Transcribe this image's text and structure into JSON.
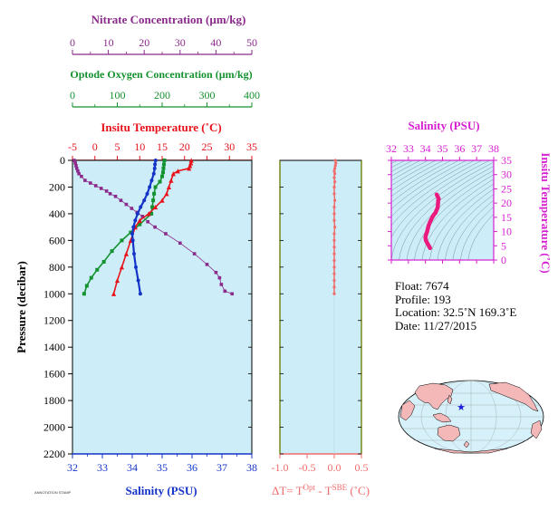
{
  "colors": {
    "plot_bg": "#cdeef8",
    "nitrate": "#8b2a8b",
    "oxygen": "#13922f",
    "temperature": "#e8121b",
    "salinity": "#1434c8",
    "delta_t": "#f26b6b",
    "ts_axis": "#d61fd0",
    "ts_curve": "#ea1a7e",
    "map_land": "#f4b8b8",
    "map_ocean": "#d6f1fa",
    "float_marker": "#1b1bd6"
  },
  "axes": {
    "nitrate_title": "Nitrate Concentration (µm/kg)",
    "oxygen_title": "Optode Oxygen Concentration (µm/kg)",
    "temperature_title": "Insitu Temperature (˚C)",
    "salinity_title": "Salinity (PSU)",
    "pressure_title": "Pressure (decibar)",
    "delta_t_title_prefix": "ΔT= T",
    "delta_t_sup1": "Opt",
    "delta_t_mid": " - T",
    "delta_t_sup2": "SBE",
    "delta_t_suffix": " (˚C)",
    "ts_salinity_title": "Salinity (PSU)",
    "ts_temperature_title": "Insitu Temperature (˚C)"
  },
  "info": {
    "float": "Float:  7674",
    "profile": "Profile:  193",
    "location": "Location:  32.5˚N  169.3˚E",
    "date": "Date:  11/27/2015"
  },
  "stamp": "ANNOTATION STAMP",
  "chart_data": [
    {
      "type": "line",
      "title": "",
      "ylabel": "Pressure (decibar)",
      "ylim": [
        0,
        2200
      ],
      "y_reversed": true,
      "y_ticks": [
        0,
        200,
        400,
        600,
        800,
        1000,
        1200,
        1400,
        1600,
        1800,
        2000,
        2200
      ],
      "axes_x": {
        "nitrate": {
          "label": "Nitrate Concentration (µm/kg)",
          "range": [
            0,
            50
          ],
          "ticks": [
            0,
            10,
            20,
            30,
            40,
            50
          ]
        },
        "oxygen": {
          "label": "Optode Oxygen Concentration (µm/kg)",
          "range": [
            0,
            400
          ],
          "ticks": [
            0,
            100,
            200,
            300,
            400
          ]
        },
        "temperature": {
          "label": "Insitu Temperature (˚C)",
          "range": [
            -5,
            35
          ],
          "ticks": [
            -5,
            0,
            5,
            10,
            15,
            20,
            25,
            30,
            35
          ]
        },
        "salinity": {
          "label": "Salinity (PSU)",
          "range": [
            32,
            38
          ],
          "ticks": [
            32,
            33,
            34,
            35,
            36,
            37,
            38
          ]
        }
      },
      "series": [
        {
          "name": "Nitrate",
          "axis": "nitrate",
          "points": [
            [
              0.5,
              0
            ],
            [
              0.8,
              20
            ],
            [
              1.0,
              40
            ],
            [
              1.2,
              60
            ],
            [
              1.5,
              80
            ],
            [
              1.8,
              100
            ],
            [
              2.5,
              120
            ],
            [
              3.5,
              150
            ],
            [
              5.0,
              170
            ],
            [
              6.5,
              190
            ],
            [
              8.0,
              210
            ],
            [
              9.5,
              230
            ],
            [
              10.5,
              250
            ],
            [
              12.0,
              270
            ],
            [
              13.5,
              300
            ],
            [
              15.0,
              330
            ],
            [
              16.5,
              360
            ],
            [
              18.0,
              390
            ],
            [
              19.5,
              420
            ],
            [
              21.0,
              460
            ],
            [
              23.0,
              500
            ],
            [
              26.0,
              550
            ],
            [
              30.0,
              620
            ],
            [
              34.0,
              700
            ],
            [
              37.5,
              780
            ],
            [
              40.0,
              840
            ],
            [
              41.0,
              880
            ],
            [
              41.5,
              930
            ],
            [
              42.5,
              980
            ],
            [
              44.5,
              1000
            ]
          ]
        },
        {
          "name": "Oxygen",
          "axis": "oxygen",
          "points": [
            [
              205,
              0
            ],
            [
              204,
              30
            ],
            [
              203,
              60
            ],
            [
              202,
              90
            ],
            [
              200,
              120
            ],
            [
              195,
              160
            ],
            [
              185,
              200
            ],
            [
              182,
              250
            ],
            [
              180,
              300
            ],
            [
              178,
              350
            ],
            [
              176,
              400
            ],
            [
              150,
              480
            ],
            [
              130,
              540
            ],
            [
              110,
              600
            ],
            [
              88,
              680
            ],
            [
              70,
              760
            ],
            [
              55,
              820
            ],
            [
              42,
              880
            ],
            [
              32,
              940
            ],
            [
              26,
              1000
            ]
          ]
        },
        {
          "name": "Temperature",
          "axis": "temperature",
          "points": [
            [
              21.5,
              0
            ],
            [
              21.4,
              20
            ],
            [
              21.2,
              40
            ],
            [
              21.0,
              60
            ],
            [
              18.5,
              80
            ],
            [
              17.5,
              100
            ],
            [
              17.0,
              150
            ],
            [
              16.5,
              200
            ],
            [
              16.0,
              250
            ],
            [
              15.0,
              300
            ],
            [
              13.5,
              350
            ],
            [
              12.0,
              400
            ],
            [
              10.0,
              450
            ],
            [
              9.0,
              500
            ],
            [
              8.0,
              600
            ],
            [
              7.0,
              700
            ],
            [
              6.0,
              800
            ],
            [
              5.0,
              900
            ],
            [
              4.2,
              1000
            ]
          ]
        },
        {
          "name": "Salinity",
          "axis": "salinity",
          "points": [
            [
              34.78,
              0
            ],
            [
              34.76,
              30
            ],
            [
              34.75,
              60
            ],
            [
              34.72,
              100
            ],
            [
              34.65,
              150
            ],
            [
              34.58,
              200
            ],
            [
              34.5,
              250
            ],
            [
              34.4,
              300
            ],
            [
              34.28,
              350
            ],
            [
              34.18,
              400
            ],
            [
              34.1,
              450
            ],
            [
              34.04,
              500
            ],
            [
              34.0,
              550
            ],
            [
              34.02,
              600
            ],
            [
              34.06,
              700
            ],
            [
              34.12,
              800
            ],
            [
              34.2,
              900
            ],
            [
              34.27,
              1000
            ]
          ]
        }
      ]
    },
    {
      "type": "line",
      "title": "",
      "xlabel": "ΔT= TOpt - TSBE (˚C)",
      "xlim": [
        -1.0,
        0.5
      ],
      "x_ticks": [
        -1.0,
        -0.5,
        0.0,
        0.5
      ],
      "ylim": [
        0,
        2200
      ],
      "y_reversed": true,
      "series": [
        {
          "name": "ΔT",
          "points": [
            [
              0.02,
              0
            ],
            [
              0.03,
              20
            ],
            [
              0.02,
              40
            ],
            [
              0.01,
              60
            ],
            [
              0.0,
              80
            ],
            [
              0.01,
              100
            ],
            [
              0.0,
              130
            ],
            [
              0.01,
              160
            ],
            [
              0.0,
              200
            ],
            [
              0.0,
              250
            ],
            [
              0.01,
              300
            ],
            [
              0.0,
              350
            ],
            [
              0.0,
              400
            ],
            [
              0.0,
              450
            ],
            [
              0.01,
              500
            ],
            [
              0.0,
              550
            ],
            [
              0.0,
              600
            ],
            [
              0.0,
              650
            ],
            [
              0.0,
              700
            ],
            [
              0.0,
              750
            ],
            [
              0.0,
              800
            ],
            [
              0.0,
              850
            ],
            [
              0.0,
              900
            ],
            [
              0.0,
              950
            ],
            [
              0.0,
              1000
            ]
          ]
        }
      ]
    },
    {
      "type": "line",
      "title": "",
      "xlabel": "Salinity (PSU)",
      "ylabel": "Insitu Temperature (˚C)",
      "xlim": [
        32,
        38
      ],
      "ylim": [
        0,
        35
      ],
      "x_ticks": [
        32,
        33,
        34,
        35,
        36,
        37,
        38
      ],
      "y_ticks": [
        0,
        5,
        10,
        15,
        20,
        25,
        30,
        35
      ],
      "series": [
        {
          "name": "T-S",
          "points": [
            [
              34.27,
              4.2
            ],
            [
              34.2,
              5.0
            ],
            [
              34.1,
              6.0
            ],
            [
              34.02,
              7.0
            ],
            [
              34.0,
              8.0
            ],
            [
              34.04,
              9.0
            ],
            [
              34.1,
              10.0
            ],
            [
              34.18,
              12.0
            ],
            [
              34.28,
              13.5
            ],
            [
              34.4,
              15.0
            ],
            [
              34.5,
              16.0
            ],
            [
              34.58,
              16.5
            ],
            [
              34.65,
              17.5
            ],
            [
              34.72,
              18.5
            ],
            [
              34.75,
              21.0
            ],
            [
              34.76,
              21.4
            ],
            [
              34.78,
              21.5
            ],
            [
              34.7,
              22.5
            ],
            [
              34.66,
              23.0
            ]
          ]
        }
      ]
    }
  ],
  "map": {
    "float_lat": 32.5,
    "float_lon": 169.3
  }
}
